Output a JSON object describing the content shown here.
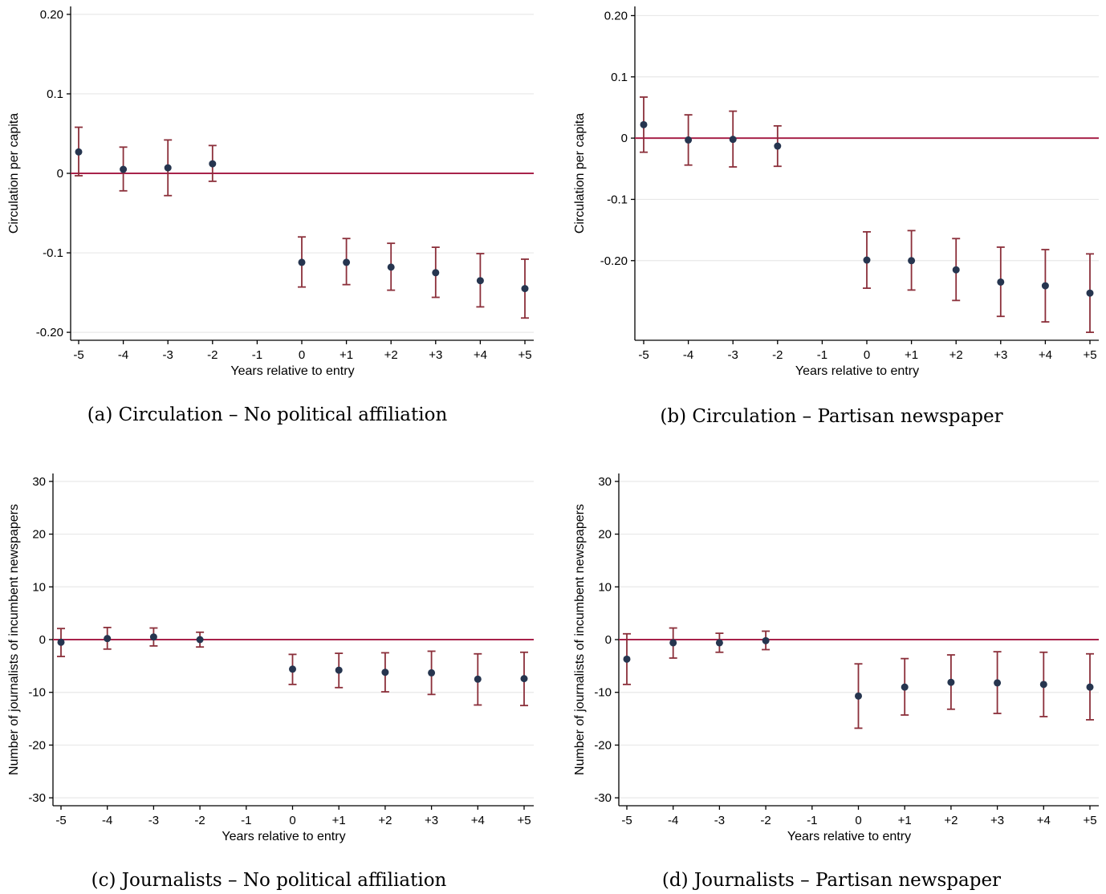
{
  "chart_data": [
    {
      "type": "scatter",
      "caption": "(a) Circulation – No political affiliation",
      "xlabel": "Years relative to entry",
      "ylabel": "Circulation per capita",
      "categories": [
        "-5",
        "-4",
        "-3",
        "-2",
        "-1",
        "0",
        "+1",
        "+2",
        "+3",
        "+4",
        "+5"
      ],
      "x": [
        -5,
        -4,
        -3,
        -2,
        0,
        1,
        2,
        3,
        4,
        5
      ],
      "y": [
        0.027,
        0.005,
        0.007,
        0.012,
        -0.112,
        -0.112,
        -0.118,
        -0.125,
        -0.135,
        -0.145
      ],
      "ci_low": [
        -0.003,
        -0.022,
        -0.028,
        -0.01,
        -0.143,
        -0.14,
        -0.147,
        -0.156,
        -0.168,
        -0.182
      ],
      "ci_high": [
        0.058,
        0.033,
        0.042,
        0.035,
        -0.08,
        -0.082,
        -0.088,
        -0.093,
        -0.101,
        -0.108
      ],
      "yticks": [
        0.2,
        0.1,
        0,
        -0.1,
        -0.2
      ],
      "ytick_labels": [
        "0.20",
        "0.1",
        "0",
        "-0.1",
        "-0.20"
      ],
      "ylim": [
        -0.21,
        0.21
      ],
      "reference_line_y": 0,
      "grid": true,
      "colors": {
        "point": "#26354f",
        "ci": "#8b2f3a",
        "reference": "#a8224a",
        "grid": "#e8e8e8"
      }
    },
    {
      "type": "scatter",
      "caption": "(b) Circulation – Partisan newspaper",
      "xlabel": "Years relative to entry",
      "ylabel": "Circulation per capita",
      "categories": [
        "-5",
        "-4",
        "-3",
        "-2",
        "-1",
        "0",
        "+1",
        "+2",
        "+3",
        "+4",
        "+5"
      ],
      "x": [
        -5,
        -4,
        -3,
        -2,
        0,
        1,
        2,
        3,
        4,
        5
      ],
      "y": [
        0.022,
        -0.003,
        -0.002,
        -0.013,
        -0.199,
        -0.2,
        -0.215,
        -0.235,
        -0.241,
        -0.253
      ],
      "ci_low": [
        -0.023,
        -0.044,
        -0.047,
        -0.046,
        -0.245,
        -0.248,
        -0.265,
        -0.291,
        -0.3,
        -0.317
      ],
      "ci_high": [
        0.067,
        0.038,
        0.044,
        0.02,
        -0.153,
        -0.151,
        -0.164,
        -0.178,
        -0.182,
        -0.189
      ],
      "yticks": [
        0.2,
        0.1,
        0,
        -0.1,
        -0.2
      ],
      "ytick_labels": [
        "0.20",
        "0.1",
        "0",
        "-0.1",
        "-0.20"
      ],
      "ylim": [
        -0.33,
        0.215
      ],
      "reference_line_y": 0,
      "grid": true,
      "colors": {
        "point": "#26354f",
        "ci": "#8b2f3a",
        "reference": "#a8224a",
        "grid": "#e8e8e8"
      }
    },
    {
      "type": "scatter",
      "caption": "(c) Journalists – No political affiliation",
      "xlabel": "Years relative to entry",
      "ylabel": "Number of journalists of incumbent newspapers",
      "categories": [
        "-5",
        "-4",
        "-3",
        "-2",
        "-1",
        "0",
        "+1",
        "+2",
        "+3",
        "+4",
        "+5"
      ],
      "x": [
        -5,
        -4,
        -3,
        -2,
        0,
        1,
        2,
        3,
        4,
        5
      ],
      "y": [
        -0.5,
        0.2,
        0.5,
        0.0,
        -5.6,
        -5.8,
        -6.2,
        -6.3,
        -7.5,
        -7.4
      ],
      "ci_low": [
        -3.2,
        -1.8,
        -1.2,
        -1.4,
        -8.5,
        -9.1,
        -9.9,
        -10.4,
        -12.4,
        -12.5
      ],
      "ci_high": [
        2.1,
        2.3,
        2.2,
        1.4,
        -2.8,
        -2.6,
        -2.5,
        -2.2,
        -2.7,
        -2.4
      ],
      "yticks": [
        30,
        20,
        10,
        0,
        -10,
        -20,
        -30
      ],
      "ytick_labels": [
        "30",
        "20",
        "10",
        "0",
        "-10",
        "-20",
        "-30"
      ],
      "ylim": [
        -31.5,
        31.5
      ],
      "reference_line_y": 0,
      "grid": true,
      "colors": {
        "point": "#26354f",
        "ci": "#8b2f3a",
        "reference": "#a8224a",
        "grid": "#e8e8e8"
      }
    },
    {
      "type": "scatter",
      "caption": "(d) Journalists – Partisan newspaper",
      "xlabel": "Years relative to entry",
      "ylabel": "Number of journalists of incumbent newspapers",
      "categories": [
        "-5",
        "-4",
        "-3",
        "-2",
        "-1",
        "0",
        "+1",
        "+2",
        "+3",
        "+4",
        "+5"
      ],
      "x": [
        -5,
        -4,
        -3,
        -2,
        0,
        1,
        2,
        3,
        4,
        5
      ],
      "y": [
        -3.7,
        -0.6,
        -0.6,
        -0.2,
        -10.7,
        -9.0,
        -8.1,
        -8.2,
        -8.5,
        -9.0
      ],
      "ci_low": [
        -8.5,
        -3.5,
        -2.4,
        -1.9,
        -16.8,
        -14.3,
        -13.2,
        -14.0,
        -14.6,
        -15.2
      ],
      "ci_high": [
        1.1,
        2.2,
        1.2,
        1.6,
        -4.6,
        -3.6,
        -2.9,
        -2.3,
        -2.4,
        -2.7
      ],
      "yticks": [
        30,
        20,
        10,
        0,
        -10,
        -20,
        -30
      ],
      "ytick_labels": [
        "30",
        "20",
        "10",
        "0",
        "-10",
        "-20",
        "-30"
      ],
      "ylim": [
        -31.5,
        31.5
      ],
      "reference_line_y": 0,
      "grid": true,
      "colors": {
        "point": "#26354f",
        "ci": "#8b2f3a",
        "reference": "#a8224a",
        "grid": "#e8e8e8"
      }
    }
  ]
}
